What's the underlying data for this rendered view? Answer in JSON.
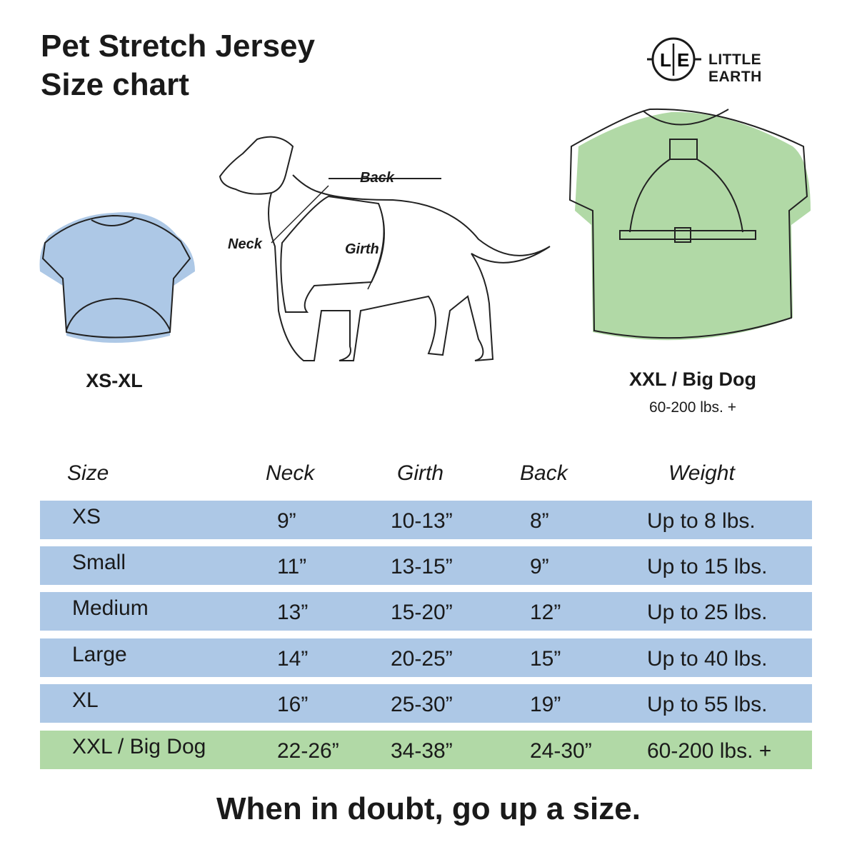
{
  "title_line1": "Pet Stretch Jersey",
  "title_line2": "Size chart",
  "logo": {
    "mark": "L|E",
    "name": "LITTLE EARTH"
  },
  "illustrations": {
    "small_label": "XS-XL",
    "big_label": "XXL / Big Dog",
    "big_sublabel": "60-200 lbs. +",
    "dog_labels": {
      "back": "Back",
      "neck": "Neck",
      "girth": "Girth"
    }
  },
  "colors": {
    "standard_row": "#adc8e6",
    "big_dog_row": "#b1d9a6",
    "small_jersey": "#adc8e6",
    "big_jersey": "#b1d9a6"
  },
  "table": {
    "headers": [
      "Size",
      "Neck",
      "Girth",
      "Back",
      "Weight"
    ],
    "rows": [
      [
        "XS",
        "9”",
        "10-13”",
        "8”",
        "Up to 8 lbs."
      ],
      [
        "Small",
        "11”",
        "13-15”",
        "9”",
        "Up to 15 lbs."
      ],
      [
        "Medium",
        "13”",
        "15-20”",
        "12”",
        "Up to 25 lbs."
      ],
      [
        "Large",
        "14”",
        "20-25”",
        "15”",
        "Up to 40 lbs."
      ],
      [
        "XL",
        "16”",
        "25-30”",
        "19”",
        "Up to 55 lbs."
      ],
      [
        "XXL / Big Dog",
        "22-26”",
        "34-38”",
        "24-30”",
        "60-200 lbs. +"
      ]
    ]
  },
  "footer": "When in doubt, go up a size."
}
